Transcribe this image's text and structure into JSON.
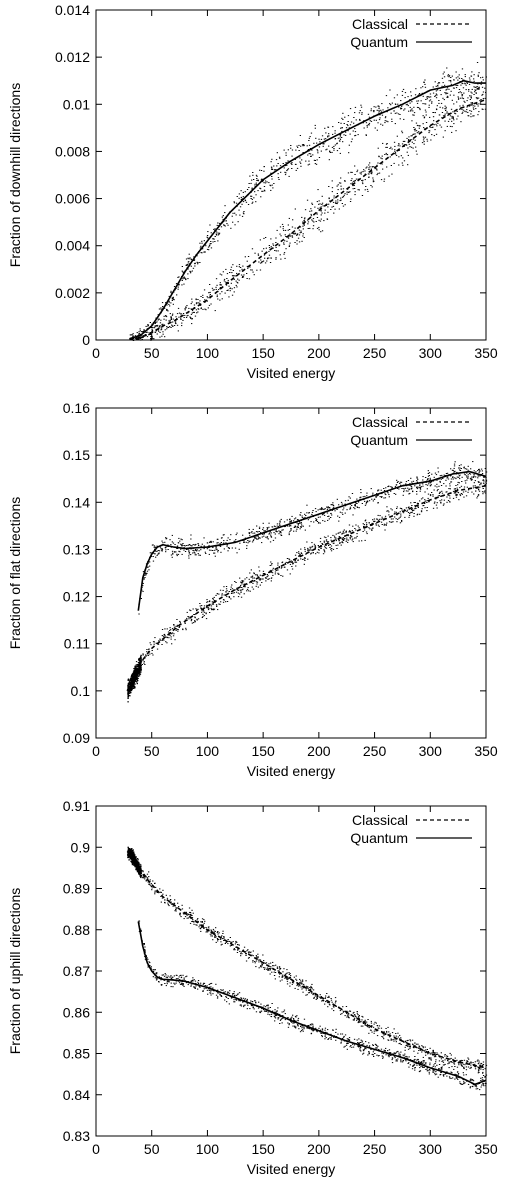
{
  "chart_data": [
    {
      "type": "scatter",
      "title": "",
      "xlabel": "Visited energy",
      "ylabel": "Fraction of downhill directions",
      "xlim": [
        0,
        350
      ],
      "ylim": [
        0,
        0.014
      ],
      "xticks": [
        0,
        50,
        100,
        150,
        200,
        250,
        300,
        350
      ],
      "yticks": [
        0,
        0.002,
        0.004,
        0.006,
        0.008,
        0.01,
        0.012,
        0.014
      ],
      "ytick_labels": [
        "0",
        "0.002",
        "0.004",
        "0.006",
        "0.008",
        "0.01",
        "0.012",
        "0.014"
      ],
      "grid": false,
      "legend_position": "top-right",
      "series": [
        {
          "name": "Classical",
          "style": "dashed",
          "x": [
            30,
            40,
            50,
            60,
            70,
            80,
            100,
            120,
            150,
            175,
            200,
            225,
            250,
            275,
            300,
            325,
            350
          ],
          "y": [
            2e-05,
            0.0001,
            0.0003,
            0.0006,
            0.0008,
            0.0011,
            0.0017,
            0.0025,
            0.0036,
            0.0045,
            0.0055,
            0.0064,
            0.0073,
            0.0082,
            0.0091,
            0.0098,
            0.0102
          ]
        },
        {
          "name": "Quantum",
          "style": "solid",
          "x": [
            30,
            40,
            50,
            60,
            70,
            80,
            90,
            100,
            120,
            150,
            175,
            200,
            225,
            250,
            275,
            300,
            320,
            330,
            340,
            350
          ],
          "y": [
            5e-05,
            0.0002,
            0.0006,
            0.0013,
            0.0021,
            0.0029,
            0.0036,
            0.0042,
            0.0054,
            0.0068,
            0.0076,
            0.0083,
            0.0089,
            0.0095,
            0.01,
            0.0106,
            0.0108,
            0.011,
            0.0109,
            0.0109
          ]
        }
      ]
    },
    {
      "type": "scatter",
      "title": "",
      "xlabel": "Visited energy",
      "ylabel": "Fraction of flat directions",
      "xlim": [
        0,
        350
      ],
      "ylim": [
        0.09,
        0.16
      ],
      "xticks": [
        0,
        50,
        100,
        150,
        200,
        250,
        300,
        350
      ],
      "yticks": [
        0.09,
        0.1,
        0.11,
        0.12,
        0.13,
        0.14,
        0.15,
        0.16
      ],
      "ytick_labels": [
        "0.09",
        "0.1",
        "0.11",
        "0.12",
        "0.13",
        "0.14",
        "0.15",
        "0.16"
      ],
      "grid": false,
      "legend_position": "top-right",
      "series": [
        {
          "name": "Classical",
          "style": "dashed",
          "x": [
            28,
            32,
            36,
            40,
            50,
            60,
            75,
            100,
            125,
            150,
            175,
            200,
            225,
            250,
            275,
            300,
            325,
            350
          ],
          "y": [
            0.1,
            0.102,
            0.104,
            0.106,
            0.109,
            0.111,
            0.114,
            0.118,
            0.1215,
            0.1245,
            0.1275,
            0.1305,
            0.133,
            0.1355,
            0.138,
            0.1405,
            0.1425,
            0.1435
          ]
        },
        {
          "name": "Quantum",
          "style": "solid",
          "x": [
            38,
            42,
            46,
            50,
            55,
            60,
            70,
            80,
            100,
            125,
            150,
            175,
            200,
            225,
            250,
            275,
            300,
            320,
            335,
            350
          ],
          "y": [
            0.117,
            0.124,
            0.127,
            0.129,
            0.1305,
            0.131,
            0.1305,
            0.1302,
            0.1305,
            0.1315,
            0.1335,
            0.1355,
            0.1375,
            0.1395,
            0.1415,
            0.1435,
            0.1445,
            0.146,
            0.1465,
            0.1455
          ]
        }
      ]
    },
    {
      "type": "scatter",
      "title": "",
      "xlabel": "Visited energy",
      "ylabel": "Fraction of uphill directions",
      "xlim": [
        0,
        350
      ],
      "ylim": [
        0.83,
        0.91
      ],
      "xticks": [
        0,
        50,
        100,
        150,
        200,
        250,
        300,
        350
      ],
      "yticks": [
        0.83,
        0.84,
        0.85,
        0.86,
        0.87,
        0.88,
        0.89,
        0.9,
        0.91
      ],
      "ytick_labels": [
        "0.83",
        "0.84",
        "0.85",
        "0.86",
        "0.87",
        "0.88",
        "0.89",
        "0.9",
        "0.91"
      ],
      "grid": false,
      "legend_position": "top-right",
      "series": [
        {
          "name": "Classical",
          "style": "dashed",
          "x": [
            28,
            32,
            36,
            40,
            50,
            60,
            75,
            100,
            125,
            150,
            175,
            200,
            225,
            250,
            275,
            300,
            325,
            350
          ],
          "y": [
            0.899,
            0.898,
            0.896,
            0.894,
            0.891,
            0.888,
            0.885,
            0.88,
            0.876,
            0.872,
            0.868,
            0.864,
            0.86,
            0.856,
            0.853,
            0.85,
            0.848,
            0.8465
          ]
        },
        {
          "name": "Quantum",
          "style": "solid",
          "x": [
            38,
            42,
            46,
            50,
            55,
            60,
            70,
            80,
            100,
            125,
            150,
            175,
            200,
            225,
            250,
            275,
            300,
            325,
            340,
            350
          ],
          "y": [
            0.882,
            0.876,
            0.872,
            0.87,
            0.8685,
            0.868,
            0.8678,
            0.8675,
            0.866,
            0.8635,
            0.861,
            0.858,
            0.8555,
            0.853,
            0.851,
            0.849,
            0.8465,
            0.8445,
            0.8425,
            0.8435
          ]
        }
      ]
    }
  ]
}
